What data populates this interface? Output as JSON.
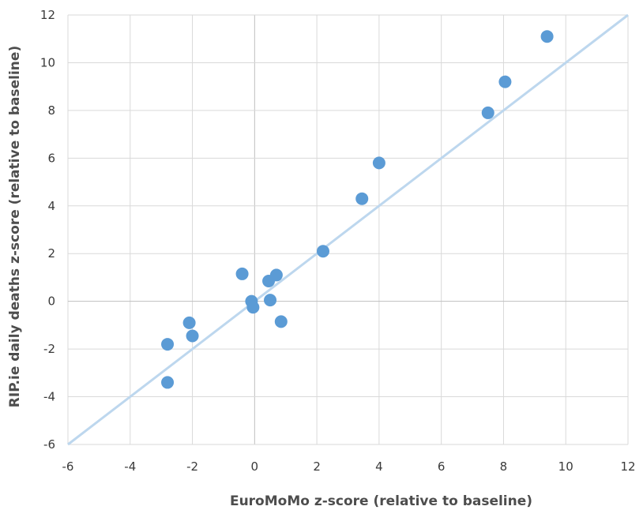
{
  "chart_data": {
    "type": "scatter",
    "xlabel": "EuroMoMo z-score (relative to baseline)",
    "ylabel": "RIP.ie daily deaths z-score (relative to baseline)",
    "xlim": [
      -6,
      12
    ],
    "ylim": [
      -6,
      12
    ],
    "x_ticks": [
      "-6",
      "-4",
      "-2",
      "0",
      "2",
      "4",
      "6",
      "8",
      "10",
      "12"
    ],
    "y_ticks": [
      "-6",
      "-4",
      "-2",
      "0",
      "2",
      "4",
      "6",
      "8",
      "10",
      "12"
    ],
    "grid": true,
    "reference_line": {
      "kind": "y = x",
      "from": [
        -6,
        -6
      ],
      "to": [
        12,
        12
      ],
      "color": "#bdd7ee"
    },
    "marker_color": "#5b9bd5",
    "points": [
      {
        "x": -2.8,
        "y": -3.4
      },
      {
        "x": -2.8,
        "y": -1.8
      },
      {
        "x": -2.1,
        "y": -0.9
      },
      {
        "x": -2.0,
        "y": -1.45
      },
      {
        "x": -0.4,
        "y": 1.15
      },
      {
        "x": -0.1,
        "y": 0.0
      },
      {
        "x": -0.05,
        "y": -0.25
      },
      {
        "x": 0.45,
        "y": 0.85
      },
      {
        "x": 0.5,
        "y": 0.05
      },
      {
        "x": 0.7,
        "y": 1.1
      },
      {
        "x": 0.85,
        "y": -0.85
      },
      {
        "x": 2.2,
        "y": 2.1
      },
      {
        "x": 3.45,
        "y": 4.3
      },
      {
        "x": 4.0,
        "y": 5.8
      },
      {
        "x": 7.5,
        "y": 7.9
      },
      {
        "x": 8.05,
        "y": 9.2
      },
      {
        "x": 9.4,
        "y": 11.1
      }
    ]
  }
}
